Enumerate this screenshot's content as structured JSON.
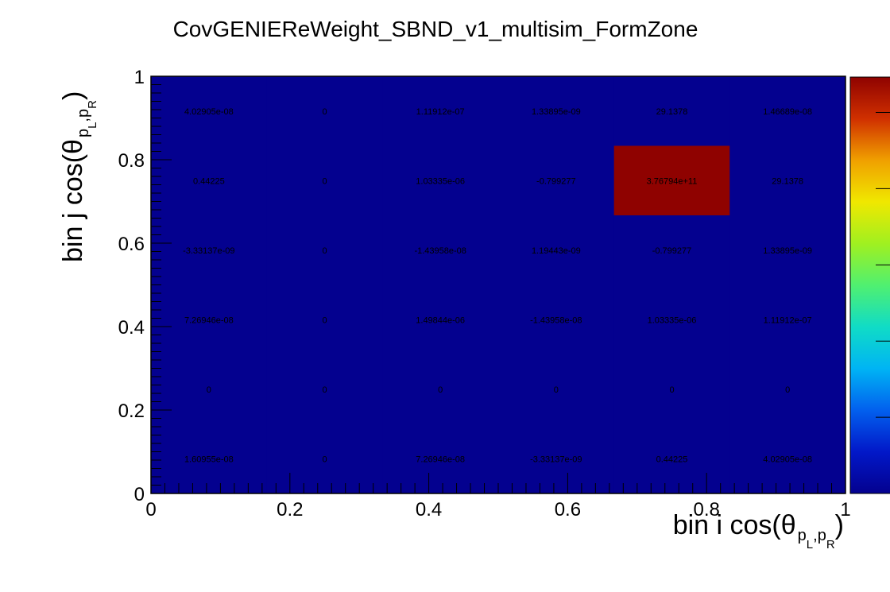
{
  "chart_data": {
    "type": "heatmap",
    "title": "CovGENIEReWeight_SBND_v1_multisim_FormZone",
    "xlabel": "bin i cos(θ",
    "ylabel": "bin j cos(θ",
    "label_subscript": "p⃗ L ,p⃗ R",
    "xlim": [
      0,
      1
    ],
    "ylim": [
      0,
      1
    ],
    "x_ticks": [
      "0",
      "0.2",
      "0.4",
      "0.6",
      "0.8",
      "1"
    ],
    "y_ticks": [
      "0",
      "0.2",
      "0.4",
      "0.6",
      "0.8",
      "1"
    ],
    "nx": 6,
    "ny": 6,
    "colorscale": "rainbow",
    "zlim": [
      0,
      376794000000.0
    ],
    "rows": [
      {
        "y_bin": 0,
        "values": [
          "1.60955e-08",
          "0",
          "7.26946e-08",
          "-3.33137e-09",
          "0.44225",
          "4.02905e-08"
        ]
      },
      {
        "y_bin": 1,
        "values": [
          "0",
          "0",
          "0",
          "0",
          "0",
          "0"
        ]
      },
      {
        "y_bin": 2,
        "values": [
          "7.26946e-08",
          "0",
          "1.49844e-06",
          "-1.43958e-08",
          "1.03335e-06",
          "1.11912e-07"
        ]
      },
      {
        "y_bin": 3,
        "values": [
          "-3.33137e-09",
          "0",
          "-1.43958e-08",
          "1.19443e-09",
          "-0.799277",
          "1.33895e-09"
        ]
      },
      {
        "y_bin": 4,
        "values": [
          "0.44225",
          "0",
          "1.03335e-06",
          "-0.799277",
          "3.76794e+11",
          "29.1378"
        ]
      },
      {
        "y_bin": 5,
        "values": [
          "4.02905e-08",
          "0",
          "1.11912e-07",
          "1.33895e-09",
          "29.1378",
          "1.46689e-08"
        ]
      }
    ]
  },
  "colors": {
    "low": "#04018f",
    "high": "#8f0200",
    "frame": "#000000"
  }
}
